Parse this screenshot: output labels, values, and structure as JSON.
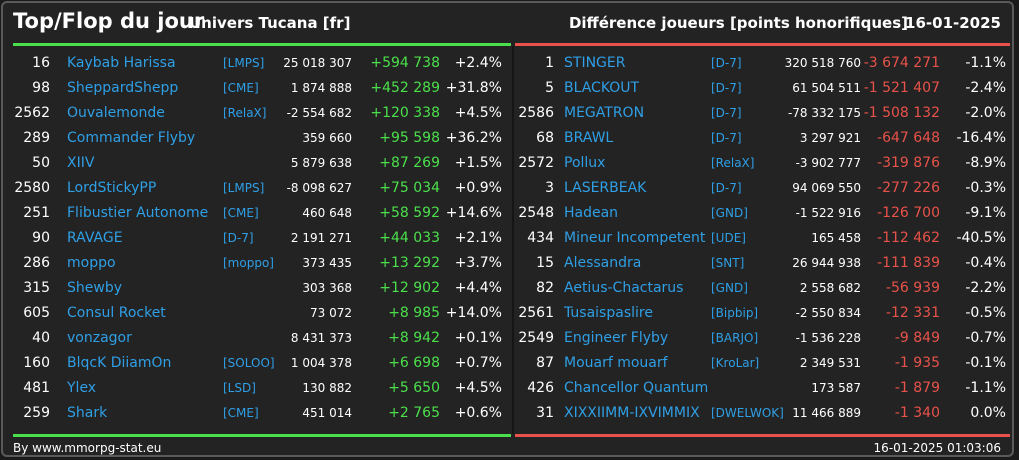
{
  "header": {
    "title": "Top/Flop du jour",
    "universe": "Univers Tucana [fr]",
    "metric": "Différence joueurs [points honorifiques]",
    "date": "16-01-2025"
  },
  "colors": {
    "background": "#232323",
    "border": "#5a5a5a",
    "positive": "#4be04b",
    "negative": "#e8524a",
    "name_link": "#2f9fe6",
    "text": "#ffffff"
  },
  "top": [
    {
      "rank": "16",
      "name": "Kaybab Harissa",
      "alliance": "[LMPS]",
      "score": "25 018 307",
      "diff": "+594 738",
      "pct": "+2.4%"
    },
    {
      "rank": "98",
      "name": "SheppardShepp",
      "alliance": "[CME]",
      "score": "1 874 888",
      "diff": "+452 289",
      "pct": "+31.8%"
    },
    {
      "rank": "2562",
      "name": "Ouvalemonde",
      "alliance": "[RelaX]",
      "score": "-2 554 682",
      "diff": "+120 338",
      "pct": "+4.5%"
    },
    {
      "rank": "289",
      "name": "Commander Flyby",
      "alliance": "",
      "score": "359 660",
      "diff": "+95 598",
      "pct": "+36.2%"
    },
    {
      "rank": "50",
      "name": "XIIV",
      "alliance": "",
      "score": "5 879 638",
      "diff": "+87 269",
      "pct": "+1.5%"
    },
    {
      "rank": "2580",
      "name": "LordStickyPP",
      "alliance": "[LMPS]",
      "score": "-8 098 627",
      "diff": "+75 034",
      "pct": "+0.9%"
    },
    {
      "rank": "251",
      "name": "Flibustier Autonome",
      "alliance": "[CME]",
      "score": "460 648",
      "diff": "+58 592",
      "pct": "+14.6%"
    },
    {
      "rank": "90",
      "name": "RAVAGE",
      "alliance": "[D-7]",
      "score": "2 191 271",
      "diff": "+44 033",
      "pct": "+2.1%"
    },
    {
      "rank": "286",
      "name": "moppo",
      "alliance": "[moppo]",
      "score": "373 435",
      "diff": "+13 292",
      "pct": "+3.7%"
    },
    {
      "rank": "315",
      "name": "Shewby",
      "alliance": "",
      "score": "303 368",
      "diff": "+12 902",
      "pct": "+4.4%"
    },
    {
      "rank": "605",
      "name": "Consul Rocket",
      "alliance": "",
      "score": "73 072",
      "diff": "+8 985",
      "pct": "+14.0%"
    },
    {
      "rank": "40",
      "name": "vonzagor",
      "alliance": "",
      "score": "8 431 373",
      "diff": "+8 942",
      "pct": "+0.1%"
    },
    {
      "rank": "160",
      "name": "BlqcK DiiamOn",
      "alliance": "[SOLOO]",
      "score": "1 004 378",
      "diff": "+6 698",
      "pct": "+0.7%"
    },
    {
      "rank": "481",
      "name": "Ylex",
      "alliance": "[LSD]",
      "score": "130 882",
      "diff": "+5 650",
      "pct": "+4.5%"
    },
    {
      "rank": "259",
      "name": "Shark",
      "alliance": "[CME]",
      "score": "451 014",
      "diff": "+2 765",
      "pct": "+0.6%"
    }
  ],
  "flop": [
    {
      "rank": "1",
      "name": "STINGER",
      "alliance": "[D-7]",
      "score": "320 518 760",
      "diff": "-3 674 271",
      "pct": "-1.1%"
    },
    {
      "rank": "5",
      "name": "BLACKOUT",
      "alliance": "[D-7]",
      "score": "61 504 511",
      "diff": "-1 521 407",
      "pct": "-2.4%"
    },
    {
      "rank": "2586",
      "name": "MEGATRON",
      "alliance": "[D-7]",
      "score": "-78 332 175",
      "diff": "-1 508 132",
      "pct": "-2.0%"
    },
    {
      "rank": "68",
      "name": "BRAWL",
      "alliance": "[D-7]",
      "score": "3 297 921",
      "diff": "-647 648",
      "pct": "-16.4%"
    },
    {
      "rank": "2572",
      "name": "Pollux",
      "alliance": "[RelaX]",
      "score": "-3 902 777",
      "diff": "-319 876",
      "pct": "-8.9%"
    },
    {
      "rank": "3",
      "name": "LASERBEAK",
      "alliance": "[D-7]",
      "score": "94 069 550",
      "diff": "-277 226",
      "pct": "-0.3%"
    },
    {
      "rank": "2548",
      "name": "Hadean",
      "alliance": "[GND]",
      "score": "-1 522 916",
      "diff": "-126 700",
      "pct": "-9.1%"
    },
    {
      "rank": "434",
      "name": "Mineur Incompetent",
      "alliance": "[UDE]",
      "score": "165 458",
      "diff": "-112 462",
      "pct": "-40.5%"
    },
    {
      "rank": "15",
      "name": "Alessandra",
      "alliance": "[SNT]",
      "score": "26 944 938",
      "diff": "-111 839",
      "pct": "-0.4%"
    },
    {
      "rank": "82",
      "name": "Aetius-Chactarus",
      "alliance": "[GND]",
      "score": "2 558 682",
      "diff": "-56 939",
      "pct": "-2.2%"
    },
    {
      "rank": "2561",
      "name": "Tusaispaslire",
      "alliance": "[Bipbip]",
      "score": "-2 550 834",
      "diff": "-12 331",
      "pct": "-0.5%"
    },
    {
      "rank": "2549",
      "name": "Engineer Flyby",
      "alliance": "[BARJO]",
      "score": "-1 536 228",
      "diff": "-9 849",
      "pct": "-0.7%"
    },
    {
      "rank": "87",
      "name": "Mouarf mouarf",
      "alliance": "[KroLar]",
      "score": "2 349 531",
      "diff": "-1 935",
      "pct": "-0.1%"
    },
    {
      "rank": "426",
      "name": "Chancellor Quantum",
      "alliance": "",
      "score": "173 587",
      "diff": "-1 879",
      "pct": "-1.1%"
    },
    {
      "rank": "31",
      "name": "XIXXIIMM-IXVIMMIX",
      "alliance": "[DWELWOK]",
      "score": "11 466 889",
      "diff": "-1 340",
      "pct": "0.0%"
    }
  ],
  "footer": {
    "source": "By www.mmorpg-stat.eu",
    "timestamp": "16-01-2025 01:03:06"
  }
}
